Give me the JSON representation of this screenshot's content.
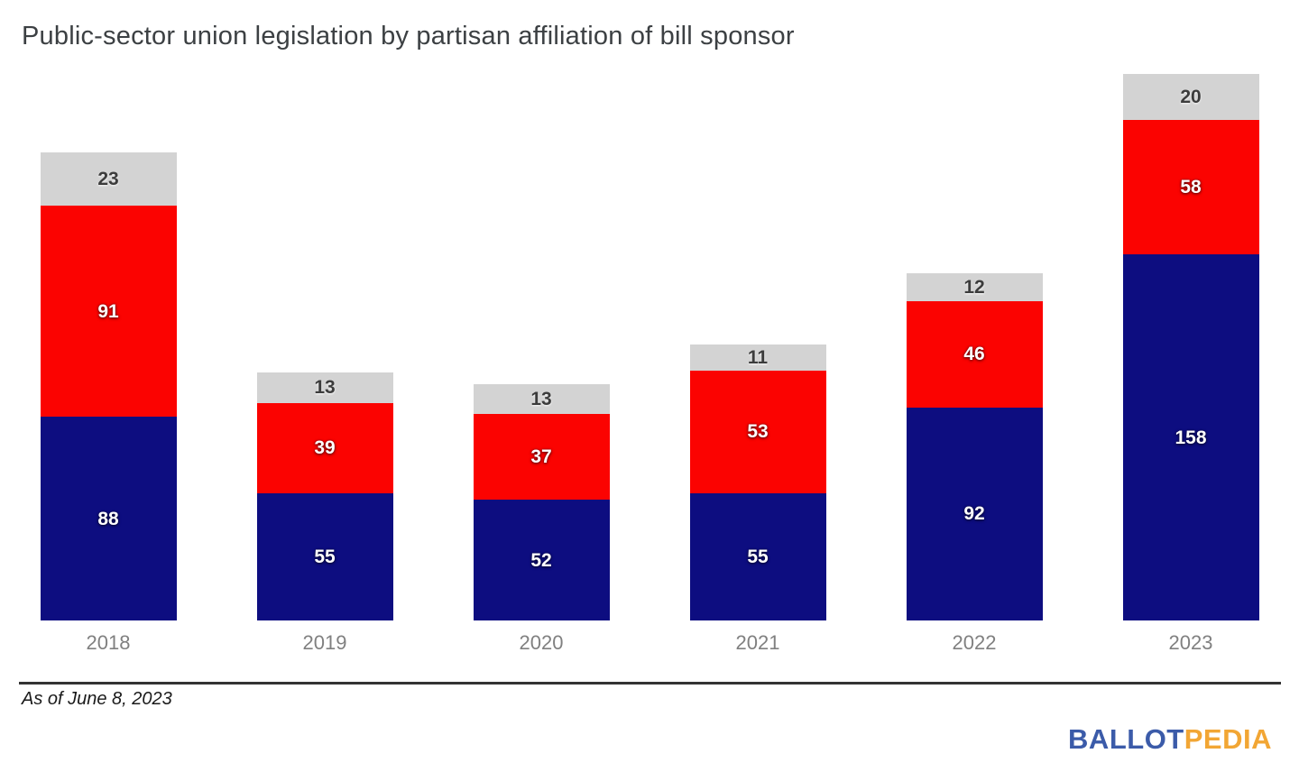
{
  "title": "Public-sector union legislation by partisan affiliation of bill sponsor",
  "footnote": "As of June 8, 2023",
  "logo": {
    "part1": "BALLOT",
    "part2": "PEDIA",
    "part1_color": "#3b5ba9",
    "part2_color": "#f2a634"
  },
  "axis_color": "#333333",
  "chart_data": {
    "type": "bar",
    "stacked": true,
    "title": "Public-sector union legislation by partisan affiliation of bill sponsor",
    "categories": [
      "2018",
      "2019",
      "2020",
      "2021",
      "2022",
      "2023"
    ],
    "series": [
      {
        "name": "blue-bottom-segment",
        "color": "#0d0d80",
        "label_style": "light",
        "values": [
          88,
          55,
          52,
          55,
          92,
          158
        ]
      },
      {
        "name": "red-middle-segment",
        "color": "#fb0301",
        "label_style": "light",
        "values": [
          91,
          39,
          37,
          53,
          46,
          58
        ]
      },
      {
        "name": "gray-top-segment",
        "color": "#d3d3d3",
        "label_style": "dark",
        "values": [
          23,
          13,
          13,
          11,
          12,
          20
        ]
      }
    ],
    "totals": [
      202,
      107,
      102,
      119,
      150,
      236
    ],
    "xlabel": "",
    "ylabel": "",
    "ylim": [
      0,
      236
    ],
    "grid": false,
    "legend": "none",
    "data_labels": "inside-center"
  }
}
